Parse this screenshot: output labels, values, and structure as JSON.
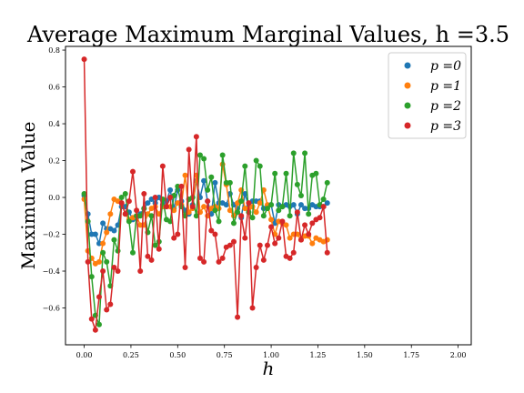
{
  "chart_data": {
    "type": "line",
    "title": "Average Maximum Marginal Values, h =3.5",
    "xlabel": "h",
    "ylabel": "Maximum Value",
    "xlim": [
      -0.1,
      2.07
    ],
    "ylim": [
      -0.8,
      0.82
    ],
    "xticks": [
      "0.00",
      "0.25",
      "0.50",
      "0.75",
      "1.00",
      "1.25",
      "1.50",
      "1.75",
      "2.00"
    ],
    "xtick_values": [
      0,
      0.25,
      0.5,
      0.75,
      1.0,
      1.25,
      1.5,
      1.75,
      2.0
    ],
    "yticks": [
      "−0.6",
      "−0.4",
      "−0.2",
      "0.0",
      "0.2",
      "0.4",
      "0.6",
      "0.8"
    ],
    "ytick_values": [
      -0.6,
      -0.4,
      -0.2,
      0.0,
      0.2,
      0.4,
      0.6,
      0.8
    ],
    "legend_position": "top-right",
    "x_start": 0.0,
    "x_step": 0.02,
    "series": [
      {
        "name": "p =0",
        "color": "#1f77b4",
        "values": [
          0.01,
          -0.09,
          -0.2,
          -0.2,
          -0.25,
          -0.14,
          -0.17,
          -0.17,
          -0.18,
          -0.15,
          -0.05,
          -0.05,
          -0.08,
          -0.12,
          -0.11,
          -0.09,
          -0.06,
          -0.03,
          -0.01,
          -0.03,
          0.0,
          -0.04,
          -0.02,
          0.04,
          -0.06,
          0.04,
          -0.02,
          -0.07,
          -0.09,
          -0.04,
          0.09,
          0.0,
          0.09,
          -0.02,
          -0.09,
          0.08,
          -0.03,
          -0.03,
          -0.04,
          0.02,
          -0.04,
          -0.06,
          -0.11,
          0.02,
          -0.05,
          -0.02,
          -0.02,
          -0.02,
          -0.06,
          -0.05,
          -0.04,
          -0.14,
          -0.04,
          -0.05,
          -0.04,
          -0.05,
          -0.04,
          -0.09,
          -0.04,
          -0.06,
          -0.06,
          -0.04,
          -0.05,
          -0.05,
          -0.05,
          -0.03
        ]
      },
      {
        "name": "p =1",
        "color": "#ff7f0e",
        "values": [
          -0.01,
          -0.29,
          -0.33,
          -0.36,
          -0.35,
          -0.25,
          -0.19,
          -0.09,
          -0.01,
          -0.02,
          -0.03,
          -0.09,
          -0.12,
          -0.11,
          -0.1,
          -0.15,
          -0.15,
          -0.09,
          -0.06,
          -0.05,
          -0.09,
          -0.05,
          -0.05,
          -0.05,
          -0.07,
          -0.03,
          -0.04,
          0.12,
          -0.08,
          -0.06,
          0.12,
          -0.08,
          -0.05,
          -0.1,
          -0.06,
          -0.05,
          -0.06,
          0.18,
          0.07,
          -0.07,
          -0.1,
          -0.03,
          0.04,
          -0.06,
          -0.06,
          -0.05,
          -0.08,
          -0.03,
          0.04,
          -0.04,
          -0.12,
          -0.2,
          -0.13,
          -0.14,
          -0.15,
          -0.22,
          -0.2,
          -0.2,
          -0.23,
          -0.21,
          -0.21,
          -0.25,
          -0.22,
          -0.23,
          -0.24,
          -0.23
        ]
      },
      {
        "name": "p =2",
        "color": "#2ca02c",
        "values": [
          0.02,
          -0.13,
          -0.43,
          -0.64,
          -0.69,
          -0.3,
          -0.35,
          -0.48,
          -0.23,
          -0.29,
          0.0,
          0.02,
          -0.13,
          -0.3,
          -0.1,
          -0.1,
          -0.06,
          -0.19,
          -0.1,
          -0.26,
          -0.24,
          -0.01,
          -0.12,
          -0.13,
          0.01,
          0.06,
          -0.05,
          -0.1,
          -0.01,
          0.0,
          -0.1,
          0.23,
          0.21,
          0.04,
          0.11,
          -0.07,
          -0.13,
          0.23,
          0.08,
          0.08,
          -0.14,
          -0.08,
          -0.02,
          0.17,
          -0.08,
          -0.11,
          0.2,
          0.17,
          -0.1,
          -0.06,
          -0.04,
          0.13,
          -0.07,
          -0.05,
          0.13,
          -0.1,
          0.24,
          0.07,
          0.01,
          0.24,
          -0.09,
          0.12,
          0.13,
          -0.04,
          -0.01,
          0.08
        ]
      },
      {
        "name": "p =3",
        "color": "#d62728",
        "values": [
          0.75,
          -0.35,
          -0.66,
          -0.72,
          -0.54,
          -0.4,
          -0.61,
          -0.58,
          -0.38,
          -0.4,
          -0.03,
          -0.09,
          -0.02,
          0.14,
          -0.07,
          -0.4,
          0.02,
          -0.32,
          -0.34,
          0.0,
          -0.28,
          0.17,
          -0.05,
          0.0,
          -0.22,
          -0.2,
          0.06,
          -0.38,
          0.26,
          -0.05,
          0.33,
          -0.33,
          -0.35,
          -0.02,
          -0.18,
          -0.2,
          -0.35,
          -0.33,
          -0.27,
          -0.26,
          -0.24,
          -0.65,
          -0.1,
          -0.22,
          -0.03,
          -0.6,
          -0.38,
          -0.26,
          -0.34,
          -0.26,
          -0.16,
          -0.25,
          -0.22,
          -0.13,
          -0.32,
          -0.33,
          -0.3,
          -0.08,
          -0.23,
          -0.15,
          -0.2,
          -0.14,
          -0.12,
          -0.11,
          -0.05,
          -0.3
        ]
      }
    ]
  }
}
